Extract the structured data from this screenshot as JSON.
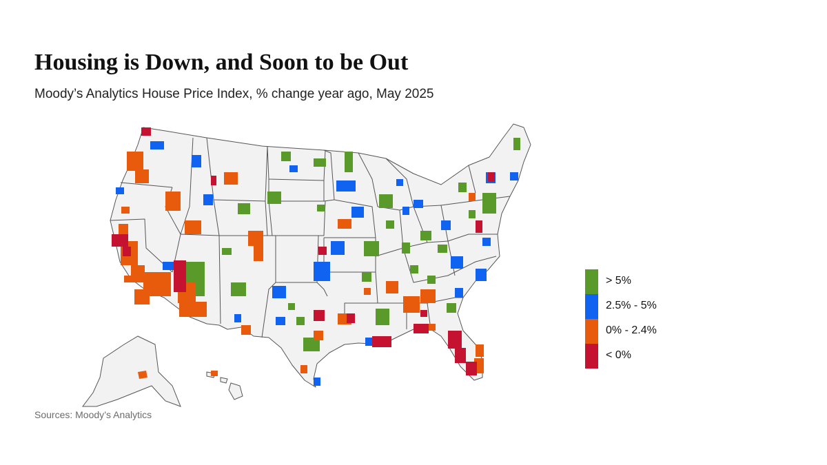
{
  "title": "Housing is Down, and Soon to be Out",
  "subtitle": "Moody’s Analytics House Price Index, % change year ago, May 2025",
  "source": "Sources: Moody’s Analytics",
  "colors": {
    "background": "#ffffff",
    "state_fill": "#f2f2f2",
    "state_border": "#555555",
    "gt5": "#5a9a2a",
    "2_5to5": "#0f63f0",
    "0to2_4": "#e85a0c",
    "lt0": "#c41230"
  },
  "legend": [
    {
      "key": "gt5",
      "label": "> 5%",
      "color": "#5a9a2a"
    },
    {
      "key": "2_5to5",
      "label": "2.5% - 5%",
      "color": "#0f63f0"
    },
    {
      "key": "0to2_4",
      "label": "0% - 2.4%",
      "color": "#e85a0c"
    },
    {
      "key": "lt0",
      "label": "< 0%",
      "color": "#c41230"
    }
  ]
}
